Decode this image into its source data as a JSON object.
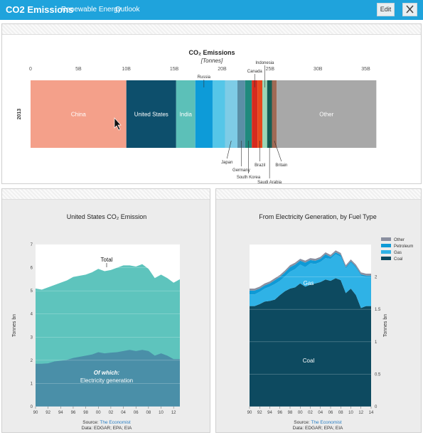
{
  "header": {
    "app_title": "CO2 Emissions",
    "nav": [
      "Renewable Energy",
      "Outlook"
    ],
    "edit_label": "Edit",
    "close_icon": "close-icon",
    "accent": "#1fa3dc"
  },
  "chart_data": [
    {
      "type": "bar",
      "title": "CO₂ Emissions",
      "subtitle": "[Tonnes]",
      "ylabel": "2013",
      "orientation": "stacked-horizontal",
      "xlim": [
        0,
        36
      ],
      "xticks": [
        0,
        5,
        10,
        15,
        20,
        25,
        30,
        35
      ],
      "xtick_labels": [
        "0",
        "5B",
        "10B",
        "15B",
        "20B",
        "25B",
        "30B",
        "35B"
      ],
      "segments": [
        {
          "name": "China",
          "value": 10.0,
          "color": "#f4a08a"
        },
        {
          "name": "United States",
          "value": 5.2,
          "color": "#0d4f6c"
        },
        {
          "name": "India",
          "value": 2.0,
          "color": "#5cc0b8"
        },
        {
          "name": "Russia",
          "value": 1.8,
          "color": "#0d9bd8"
        },
        {
          "name": "",
          "value": 1.3,
          "color": "#55c6e8"
        },
        {
          "name": "Japan",
          "value": 1.3,
          "color": "#7ecce6"
        },
        {
          "name": "Germany",
          "value": 0.8,
          "color": "#5a8fa6"
        },
        {
          "name": "South Korea",
          "value": 0.7,
          "color": "#1f8a7d"
        },
        {
          "name": "Canada",
          "value": 0.6,
          "color": "#d62b1e"
        },
        {
          "name": "Brazil",
          "value": 0.5,
          "color": "#e8481c"
        },
        {
          "name": "Indonesia",
          "value": 0.5,
          "color": "#9bd6b5"
        },
        {
          "name": "Saudi Arabia",
          "value": 0.5,
          "color": "#145f55"
        },
        {
          "name": "Britain",
          "value": 0.5,
          "color": "#a06a55"
        },
        {
          "name": "Other",
          "value": 10.4,
          "color": "#a8a8a8"
        }
      ]
    },
    {
      "type": "area",
      "title": "United States CO₂ Emission",
      "ylabel": "Tonnes bn",
      "x": [
        1990,
        1991,
        1992,
        1993,
        1994,
        1995,
        1996,
        1997,
        1998,
        1999,
        2000,
        2001,
        2002,
        2003,
        2004,
        2005,
        2006,
        2007,
        2008,
        2009,
        2010,
        2011,
        2012,
        2013
      ],
      "xtick_labels": [
        "90",
        "92",
        "94",
        "96",
        "98",
        "00",
        "02",
        "04",
        "06",
        "08",
        "10",
        "12"
      ],
      "ylim": [
        0,
        7
      ],
      "yticks": [
        0,
        1,
        2,
        3,
        4,
        5,
        6,
        7
      ],
      "series": [
        {
          "name": "Total",
          "color": "#5ec4bd",
          "values": [
            5.1,
            5.05,
            5.15,
            5.25,
            5.35,
            5.45,
            5.6,
            5.65,
            5.7,
            5.8,
            5.95,
            5.85,
            5.9,
            6.0,
            6.1,
            6.1,
            6.05,
            6.15,
            5.95,
            5.55,
            5.7,
            5.55,
            5.35,
            5.5
          ]
        },
        {
          "name": "Of which: Electricity generation",
          "color": "#4a8fa8",
          "values": [
            1.85,
            1.85,
            1.87,
            1.95,
            1.98,
            2.02,
            2.1,
            2.15,
            2.2,
            2.25,
            2.35,
            2.3,
            2.33,
            2.35,
            2.4,
            2.45,
            2.4,
            2.45,
            2.4,
            2.2,
            2.3,
            2.2,
            2.05,
            2.05
          ]
        }
      ],
      "annotations": [
        "Total",
        "Of which:",
        "Electricity generation"
      ],
      "source_label": "Source: ",
      "source_link": "The Economist",
      "data_credit": "Data: EDGAR; EPA; EIA"
    },
    {
      "type": "area",
      "title": "From Electricity Generation, by Fuel Type",
      "ylabel": "Tonnes bn",
      "x": [
        1990,
        1991,
        1992,
        1993,
        1994,
        1995,
        1996,
        1997,
        1998,
        1999,
        2000,
        2001,
        2002,
        2003,
        2004,
        2005,
        2006,
        2007,
        2008,
        2009,
        2010,
        2011,
        2012,
        2013,
        2014
      ],
      "xtick_labels": [
        "90",
        "92",
        "94",
        "96",
        "98",
        "00",
        "02",
        "04",
        "06",
        "08",
        "10",
        "12",
        "14"
      ],
      "ylim": [
        0,
        2.5
      ],
      "yticks": [
        0,
        0.5,
        1,
        1.5,
        2
      ],
      "legend": [
        "Other",
        "Petroleum",
        "Gas",
        "Coal"
      ],
      "legend_position": "top-right",
      "series": [
        {
          "name": "Coal",
          "color": "#0d4a60",
          "values": [
            1.55,
            1.55,
            1.58,
            1.62,
            1.63,
            1.65,
            1.72,
            1.78,
            1.82,
            1.84,
            1.9,
            1.85,
            1.88,
            1.9,
            1.92,
            1.96,
            1.94,
            1.98,
            1.95,
            1.75,
            1.82,
            1.72,
            1.52,
            1.55,
            1.55
          ]
        },
        {
          "name": "Gas",
          "color": "#2fb2e6",
          "values": [
            0.18,
            0.18,
            0.19,
            0.2,
            0.22,
            0.24,
            0.22,
            0.23,
            0.26,
            0.28,
            0.29,
            0.3,
            0.33,
            0.3,
            0.31,
            0.33,
            0.34,
            0.37,
            0.36,
            0.38,
            0.4,
            0.42,
            0.5,
            0.45,
            0.45
          ]
        },
        {
          "name": "Petroleum",
          "color": "#0e9ad6",
          "values": [
            0.06,
            0.06,
            0.05,
            0.05,
            0.05,
            0.06,
            0.06,
            0.06,
            0.07,
            0.07,
            0.06,
            0.07,
            0.05,
            0.05,
            0.05,
            0.06,
            0.03,
            0.03,
            0.03,
            0.02,
            0.02,
            0.02,
            0.02,
            0.02,
            0.02
          ]
        },
        {
          "name": "Other",
          "color": "#8a8fa0",
          "values": [
            0.03,
            0.03,
            0.03,
            0.03,
            0.03,
            0.03,
            0.03,
            0.03,
            0.03,
            0.03,
            0.03,
            0.03,
            0.03,
            0.03,
            0.03,
            0.03,
            0.03,
            0.03,
            0.03,
            0.03,
            0.03,
            0.03,
            0.03,
            0.03,
            0.03
          ]
        }
      ],
      "annotations": [
        "Gas",
        "Coal"
      ],
      "source_label": "Source: ",
      "source_link": "The Economist",
      "data_credit": "Data: EDGAR; EPA; EIA"
    }
  ]
}
